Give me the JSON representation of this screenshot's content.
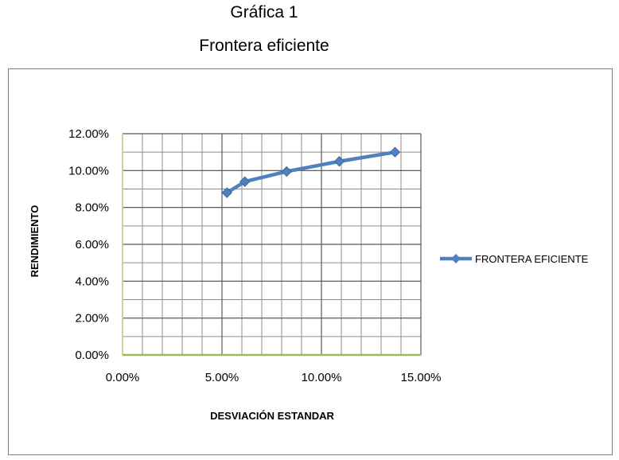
{
  "caption": {
    "line1": "Gráfica 1",
    "line2": "Frontera eficiente"
  },
  "chart_data": {
    "type": "line",
    "title": "",
    "xlabel": "DESVIACIÓN ESTANDAR",
    "ylabel": "RENDIMIENTO",
    "xlim": [
      0,
      0.15
    ],
    "ylim": [
      0,
      0.12
    ],
    "x_ticks": [
      "0.00%",
      "5.00%",
      "10.00%",
      "15.00%"
    ],
    "y_ticks": [
      "0.00%",
      "2.00%",
      "4.00%",
      "6.00%",
      "8.00%",
      "10.00%",
      "12.00%"
    ],
    "grid": true,
    "legend_position": "right",
    "line_color": "#4f81bd",
    "series": [
      {
        "name": "FRONTERA EFICIENTE",
        "x": [
          0.0525,
          0.0615,
          0.0825,
          0.109,
          0.137
        ],
        "y": [
          0.088,
          0.094,
          0.0995,
          0.105,
          0.11
        ]
      }
    ]
  }
}
